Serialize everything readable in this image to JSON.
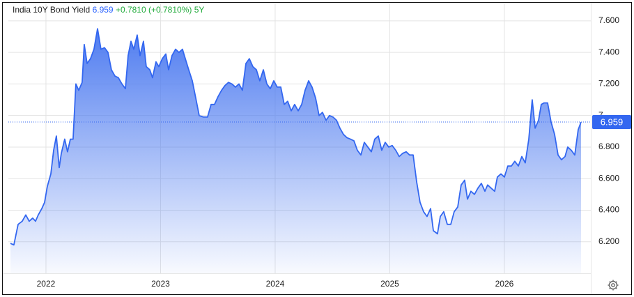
{
  "chart_data": {
    "type": "area",
    "title": "India 10Y Bond Yield",
    "last": 6.959,
    "change": "+0.7810",
    "change_pct": "(+0.7810%)",
    "period": "5Y",
    "xlim": [
      2021.672,
      2026.754
    ],
    "xticks": [
      2022,
      2023,
      2024,
      2025,
      2026
    ],
    "ylim": [
      6.0,
      7.71
    ],
    "yticks": [
      {
        "value": 6.2,
        "label": "6.200"
      },
      {
        "value": 6.4,
        "label": "6.400"
      },
      {
        "value": 6.6,
        "label": "6.600"
      },
      {
        "value": 6.8,
        "label": "6.800"
      },
      7,
      {
        "value": 7.2,
        "label": "7.200"
      },
      {
        "value": 7.4,
        "label": "7.400"
      },
      {
        "value": 7.6,
        "label": "7.600"
      }
    ],
    "grid": true,
    "series": [
      {
        "name": "India 10Y Bond Yield",
        "color": "#3367f0",
        "x": [
          2021.69,
          2021.72,
          2021.757,
          2021.793,
          2021.824,
          2021.854,
          2021.884,
          2021.909,
          2021.933,
          2021.964,
          2021.988,
          2022.012,
          2022.043,
          2022.067,
          2022.091,
          2022.116,
          2022.134,
          2022.164,
          2022.188,
          2022.213,
          2022.237,
          2022.261,
          2022.286,
          2022.316,
          2022.334,
          2022.359,
          2022.389,
          2022.419,
          2022.45,
          2022.48,
          2022.511,
          2022.541,
          2022.571,
          2022.602,
          2022.632,
          2022.663,
          2022.693,
          2022.717,
          2022.742,
          2022.766,
          2022.796,
          2022.821,
          2022.851,
          2022.875,
          2022.906,
          2022.93,
          2022.96,
          2022.985,
          2023.015,
          2023.046,
          2023.07,
          2023.1,
          2023.131,
          2023.161,
          2023.191,
          2023.216,
          2023.246,
          2023.277,
          2023.307,
          2023.337,
          2023.374,
          2023.41,
          2023.441,
          2023.471,
          2023.502,
          2023.532,
          2023.562,
          2023.593,
          2023.623,
          2023.653,
          2023.684,
          2023.714,
          2023.745,
          2023.775,
          2023.805,
          2023.836,
          2023.866,
          2023.897,
          2023.927,
          2023.957,
          2023.988,
          2024.018,
          2024.049,
          2024.079,
          2024.109,
          2024.14,
          2024.17,
          2024.201,
          2024.231,
          2024.261,
          2024.292,
          2024.322,
          2024.353,
          2024.383,
          2024.413,
          2024.444,
          2024.474,
          2024.505,
          2024.535,
          2024.565,
          2024.596,
          2024.626,
          2024.657,
          2024.687,
          2024.717,
          2024.748,
          2024.778,
          2024.809,
          2024.839,
          2024.869,
          2024.9,
          2024.93,
          2024.96,
          2024.991,
          2025.021,
          2025.052,
          2025.082,
          2025.112,
          2025.143,
          2025.173,
          2025.204,
          2025.234,
          2025.264,
          2025.295,
          2025.325,
          2025.356,
          2025.38,
          2025.416,
          2025.441,
          2025.471,
          2025.502,
          2025.532,
          2025.562,
          2025.593,
          2025.623,
          2025.653,
          2025.678,
          2025.708,
          2025.739,
          2025.769,
          2025.799,
          2025.83,
          2025.854,
          2025.884,
          2025.915,
          2025.939,
          2025.97,
          2026.0,
          2026.03,
          2026.061,
          2026.091,
          2026.122,
          2026.152,
          2026.182,
          2026.213,
          2026.243,
          2026.268,
          2026.298,
          2026.322,
          2026.347,
          2026.377,
          2026.407,
          2026.438,
          2026.468,
          2026.498,
          2026.529,
          2026.553,
          2026.584,
          2026.614,
          2026.644,
          2026.669
        ],
        "values": [
          6.19,
          6.18,
          6.31,
          6.33,
          6.37,
          6.33,
          6.35,
          6.33,
          6.37,
          6.41,
          6.45,
          6.55,
          6.63,
          6.78,
          6.87,
          6.67,
          6.76,
          6.85,
          6.77,
          6.85,
          6.85,
          7.2,
          7.16,
          7.21,
          7.45,
          7.33,
          7.36,
          7.42,
          7.55,
          7.42,
          7.43,
          7.4,
          7.29,
          7.25,
          7.24,
          7.2,
          7.17,
          7.38,
          7.47,
          7.42,
          7.51,
          7.38,
          7.47,
          7.31,
          7.29,
          7.24,
          7.34,
          7.31,
          7.36,
          7.39,
          7.29,
          7.38,
          7.42,
          7.4,
          7.42,
          7.36,
          7.29,
          7.22,
          7.11,
          7.0,
          6.99,
          6.99,
          7.07,
          7.07,
          7.12,
          7.16,
          7.19,
          7.21,
          7.2,
          7.18,
          7.2,
          7.16,
          7.33,
          7.36,
          7.31,
          7.29,
          7.22,
          7.29,
          7.2,
          7.17,
          7.22,
          7.18,
          7.18,
          7.07,
          7.09,
          7.03,
          7.07,
          7.03,
          7.07,
          7.16,
          7.22,
          7.18,
          7.11,
          7.0,
          7.02,
          6.97,
          7.0,
          6.99,
          6.97,
          6.92,
          6.88,
          6.86,
          6.85,
          6.84,
          6.78,
          6.75,
          6.83,
          6.8,
          6.77,
          6.85,
          6.87,
          6.78,
          6.83,
          6.8,
          6.81,
          6.78,
          6.74,
          6.76,
          6.77,
          6.75,
          6.75,
          6.58,
          6.45,
          6.39,
          6.36,
          6.41,
          6.27,
          6.25,
          6.36,
          6.39,
          6.31,
          6.31,
          6.39,
          6.42,
          6.56,
          6.59,
          6.47,
          6.52,
          6.5,
          6.54,
          6.57,
          6.52,
          6.56,
          6.54,
          6.52,
          6.61,
          6.63,
          6.61,
          6.68,
          6.68,
          6.71,
          6.68,
          6.74,
          6.7,
          6.85,
          7.1,
          6.92,
          6.97,
          7.07,
          7.08,
          7.08,
          6.96,
          6.88,
          6.75,
          6.72,
          6.74,
          6.8,
          6.78,
          6.75,
          6.91,
          6.959
        ]
      }
    ]
  }
}
